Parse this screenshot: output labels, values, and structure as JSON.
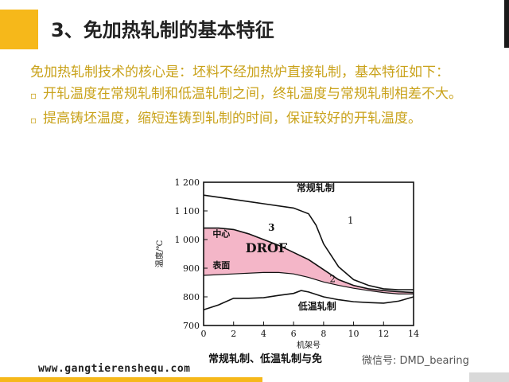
{
  "slide": {
    "title": "3、免加热轧制的基本特征",
    "intro": "免加热轧制技术的核心是：坯料不经加热炉直接轧制，基本特征如下：",
    "bullets": [
      "开轧温度在常规轧制和低温轧制之间，终轧温度与常规轧制相差不大。",
      "提高铸坯温度，缩短连铸到轧制的时间，保证较好的开轧温度。"
    ],
    "bullet_symbol": "▫",
    "footer_url": "www.gangtierenshequ.com",
    "watermark": "微信号: DMD_bearing",
    "accent_color": "#f6b81a",
    "text_color": "#c9a21a"
  },
  "chart_data": {
    "type": "line",
    "xlabel": "机架号",
    "ylabel": "温度/℃",
    "caption": "常规轧制、低温轧制与免",
    "xlim": [
      0,
      14
    ],
    "ylim": [
      700,
      1200
    ],
    "xticks": [
      0,
      2,
      4,
      6,
      8,
      10,
      12,
      14
    ],
    "yticks": [
      700,
      800,
      900,
      1000,
      1100,
      1200
    ],
    "ytick_labels": [
      "700",
      "800",
      "900",
      "1 000",
      "1 100",
      "1 200"
    ],
    "series": [
      {
        "name": "常规轧制",
        "number_label": "1",
        "points": [
          [
            0,
            1155
          ],
          [
            2,
            1140
          ],
          [
            4,
            1125
          ],
          [
            6,
            1110
          ],
          [
            7,
            1090
          ],
          [
            7.5,
            1050
          ],
          [
            8,
            985
          ],
          [
            9,
            905
          ],
          [
            10,
            860
          ],
          [
            11,
            840
          ],
          [
            12,
            828
          ],
          [
            13,
            825
          ],
          [
            14,
            825
          ]
        ]
      },
      {
        "name": "低温轧制",
        "number_label": "2",
        "points": [
          [
            0,
            755
          ],
          [
            1,
            772
          ],
          [
            2,
            795
          ],
          [
            3,
            795
          ],
          [
            4,
            797
          ],
          [
            5,
            805
          ],
          [
            6,
            812
          ],
          [
            6.5,
            822
          ],
          [
            7,
            817
          ],
          [
            8,
            800
          ],
          [
            9,
            790
          ],
          [
            10,
            783
          ],
          [
            11,
            780
          ],
          [
            12,
            778
          ],
          [
            13,
            785
          ],
          [
            14,
            800
          ]
        ]
      },
      {
        "name": "",
        "number_label": "3",
        "points": [
          [
            0,
            1040
          ],
          [
            1,
            1040
          ],
          [
            2,
            1035
          ],
          [
            3,
            1020
          ],
          [
            4,
            1000
          ],
          [
            5,
            980
          ],
          [
            6,
            955
          ],
          [
            7,
            930
          ],
          [
            8,
            895
          ],
          [
            9,
            860
          ],
          [
            10,
            840
          ],
          [
            11,
            828
          ],
          [
            12,
            822
          ],
          [
            13,
            818
          ],
          [
            14,
            815
          ]
        ]
      },
      {
        "name": "",
        "number_label": "",
        "points": [
          [
            0,
            875
          ],
          [
            2,
            880
          ],
          [
            4,
            885
          ],
          [
            5,
            885
          ],
          [
            6,
            880
          ],
          [
            7,
            868
          ],
          [
            8,
            852
          ],
          [
            9,
            840
          ],
          [
            10,
            830
          ],
          [
            11,
            822
          ],
          [
            12,
            815
          ],
          [
            13,
            810
          ],
          [
            14,
            810
          ]
        ]
      }
    ],
    "region_label": "DROF",
    "region_color": "#f4b6c8",
    "annotations": {
      "center": "中心",
      "surface": "表面"
    }
  }
}
